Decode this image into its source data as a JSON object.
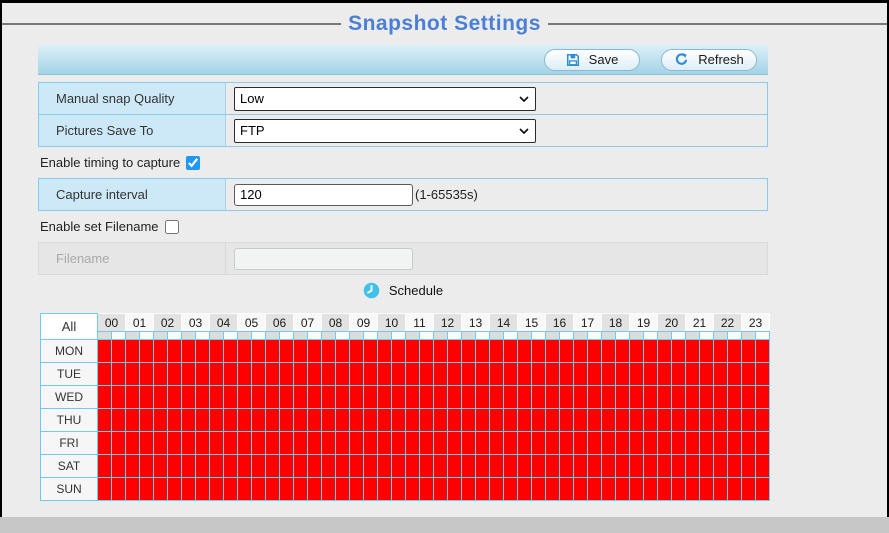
{
  "window": {
    "frame_color": "#000000",
    "background": "#ececec",
    "footer_bar_color": "#c7c7c7"
  },
  "header": {
    "title": "Snapshot Settings",
    "title_color": "#4a7fd6"
  },
  "toolbar": {
    "save_label": "Save",
    "refresh_label": "Refresh",
    "icon_color": "#2f8fd0"
  },
  "form": {
    "quality": {
      "label": "Manual snap Quality",
      "value": "Low"
    },
    "save_to": {
      "label": "Pictures Save To",
      "value": "FTP"
    },
    "enable_timing": {
      "label": "Enable timing to capture",
      "checked": true
    },
    "capture_interval": {
      "label": "Capture interval",
      "value": "120",
      "hint": "(1-65535s)"
    },
    "enable_filename": {
      "label": "Enable set Filename",
      "checked": false
    },
    "filename": {
      "label": "Filename",
      "value": "",
      "disabled": true
    }
  },
  "schedule": {
    "label": "Schedule",
    "clock_icon_color": "#3fc2ea",
    "all_label": "All",
    "hours": [
      "00",
      "01",
      "02",
      "03",
      "04",
      "05",
      "06",
      "07",
      "08",
      "09",
      "10",
      "11",
      "12",
      "13",
      "14",
      "15",
      "16",
      "17",
      "18",
      "19",
      "20",
      "21",
      "22",
      "23"
    ],
    "days": [
      "MON",
      "TUE",
      "WED",
      "THU",
      "FRI",
      "SAT",
      "SUN"
    ],
    "slots_per_hour": 2,
    "all_selected": true,
    "slot_color": "#ff0000",
    "grid_line_color": "#6fcbec"
  }
}
